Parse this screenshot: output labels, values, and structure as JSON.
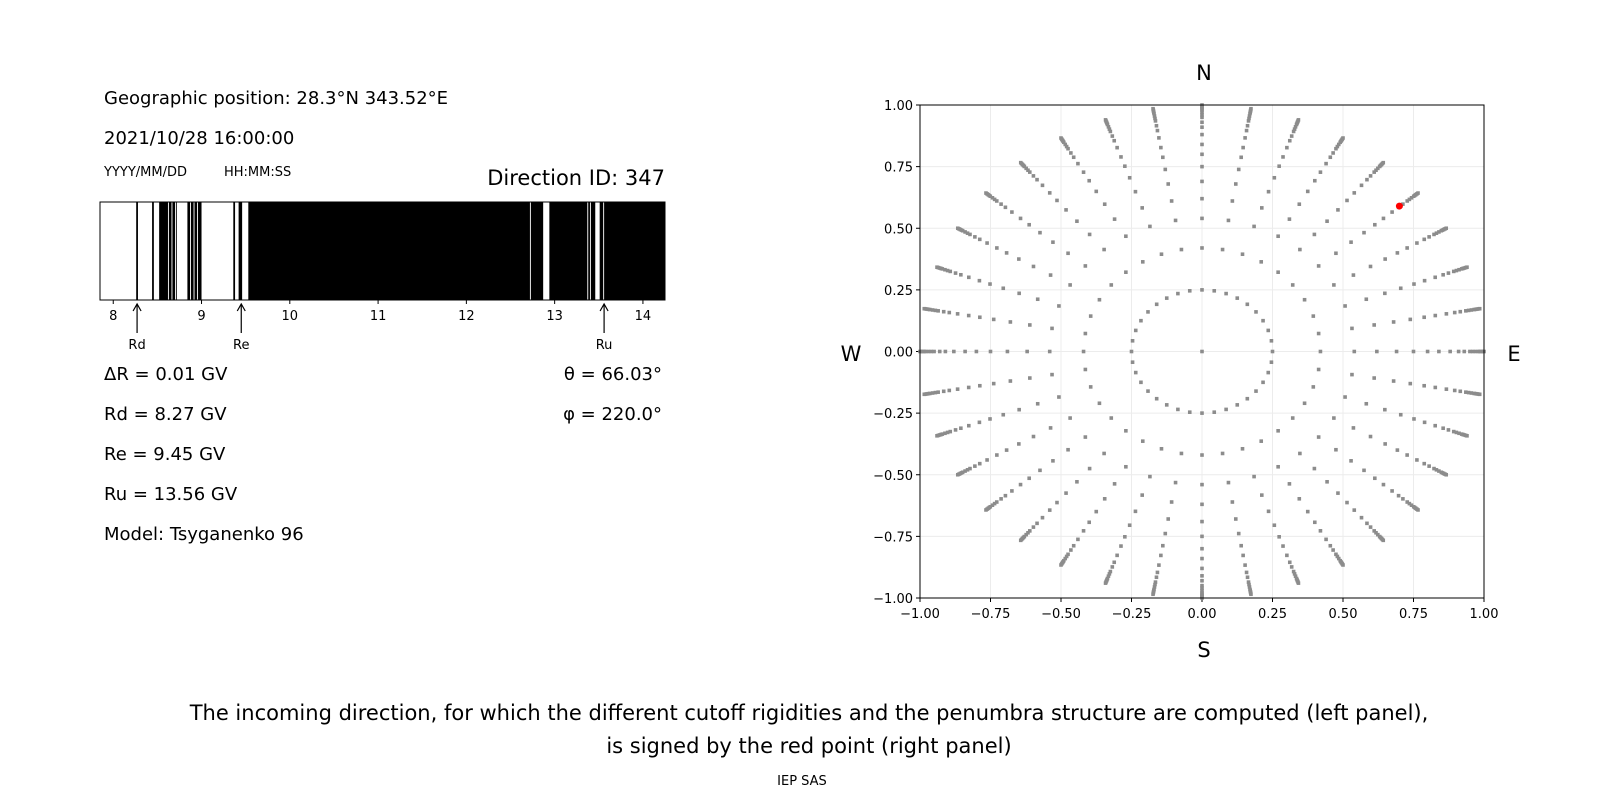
{
  "left_panel": {
    "geo_position": "Geographic position: 28.3°N 343.52°E",
    "datetime": "2021/10/28 16:00:00",
    "date_format": "YYYY/MM/DD",
    "time_format": "HH:MM:SS",
    "direction_id": "Direction ID: 347",
    "delta_r": "ΔR = 0.01 GV",
    "rd": "Rd = 8.27 GV",
    "re": "Re = 9.45 GV",
    "ru": "Ru = 13.56 GV",
    "model": "Model: Tsyganenko 96",
    "theta": "θ = 66.03°",
    "phi": "φ = 220.0°"
  },
  "chart_data": [
    {
      "type": "penumbra-bar",
      "xlim": [
        7.85,
        14.25
      ],
      "xticks": [
        "8",
        "9",
        "10",
        "11",
        "12",
        "13",
        "14"
      ],
      "xtick_values": [
        8,
        9,
        10,
        11,
        12,
        13,
        14
      ],
      "background": "#000000",
      "allowed_intervals_gv": [
        [
          7.85,
          8.26
        ],
        [
          8.28,
          8.44
        ],
        [
          8.46,
          8.52
        ],
        [
          8.62,
          8.63
        ],
        [
          8.66,
          8.67
        ],
        [
          8.7,
          8.71
        ],
        [
          8.72,
          8.84
        ],
        [
          8.87,
          8.88
        ],
        [
          8.91,
          8.92
        ],
        [
          8.95,
          8.96
        ],
        [
          9.0,
          9.36
        ],
        [
          9.38,
          9.42
        ],
        [
          9.46,
          9.53
        ],
        [
          12.72,
          12.73
        ],
        [
          12.87,
          12.94
        ],
        [
          13.37,
          13.38
        ],
        [
          13.4,
          13.41
        ],
        [
          13.46,
          13.51
        ],
        [
          13.55,
          13.56
        ]
      ],
      "markers": [
        {
          "label": "Rd",
          "value": 8.27
        },
        {
          "label": "Re",
          "value": 9.45
        },
        {
          "label": "Ru",
          "value": 13.56
        }
      ]
    },
    {
      "type": "scatter",
      "xlim": [
        -1,
        1
      ],
      "ylim": [
        -1,
        1
      ],
      "xticks": [
        "−1.00",
        "−0.75",
        "−0.50",
        "−0.25",
        "0.00",
        "0.25",
        "0.50",
        "0.75",
        "1.00"
      ],
      "yticks": [
        "−1.00",
        "−0.75",
        "−0.50",
        "−0.25",
        "0.00",
        "0.25",
        "0.50",
        "0.75",
        "1.00"
      ],
      "tick_values": [
        -1,
        -0.75,
        -0.5,
        -0.25,
        0,
        0.25,
        0.5,
        0.75,
        1
      ],
      "grid": true,
      "compass": {
        "north": "N",
        "south": "S",
        "west": "W",
        "east": "E"
      },
      "grid_point_color": "#8c8c8c",
      "azimuth_step_deg": 10,
      "inner_ring_radius": 0.25,
      "ray_radii": [
        0.42,
        0.54,
        0.62,
        0.69,
        0.75,
        0.8,
        0.84,
        0.88,
        0.91,
        0.93,
        0.95,
        0.96,
        0.97,
        0.98,
        0.985,
        0.99,
        0.995,
        1.0
      ],
      "selected_point": {
        "x": 0.7,
        "y": 0.59,
        "color": "#ff0000"
      }
    }
  ],
  "caption": {
    "line1": "The incoming direction, for which the different cutoff rigidities and the penumbra structure are computed (left panel),",
    "line2": "is signed by the red point (right panel)"
  },
  "footer": "IEP SAS"
}
